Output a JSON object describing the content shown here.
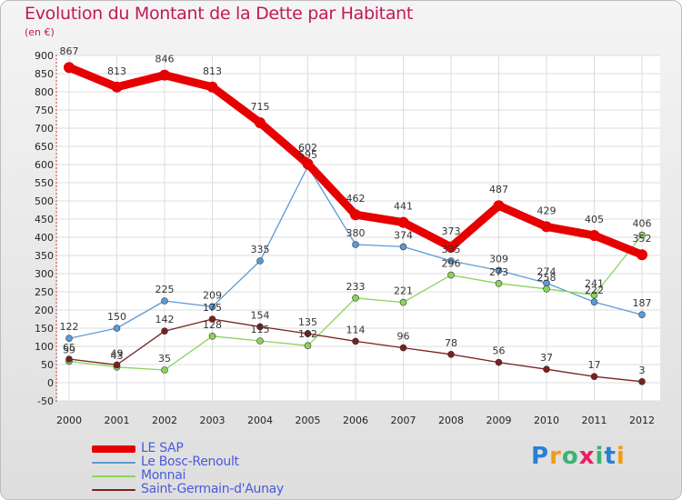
{
  "header": {
    "title": "Evolution du Montant de la Dette par Habitant",
    "unit": "(en €)"
  },
  "chart_data": {
    "type": "line",
    "title": "Evolution du Montant de la Dette par Habitant",
    "ylabel": "(en €)",
    "xlabel": "",
    "categories": [
      "2000",
      "2001",
      "2002",
      "2003",
      "2004",
      "2005",
      "2006",
      "2007",
      "2008",
      "2009",
      "2010",
      "2011",
      "2012"
    ],
    "ylim": [
      -50,
      900
    ],
    "yticks": [
      -50,
      0,
      50,
      100,
      150,
      200,
      250,
      300,
      350,
      400,
      450,
      500,
      550,
      600,
      650,
      700,
      750,
      800,
      850,
      900
    ],
    "grid": true,
    "legend_position": "bottom-left",
    "series": [
      {
        "name": "LE SAP",
        "color": "#e60000",
        "values": [
          867,
          813,
          846,
          813,
          715,
          602,
          462,
          441,
          373,
          487,
          429,
          405,
          352
        ]
      },
      {
        "name": "Le Bosc-Renoult",
        "color": "#5b9bd5",
        "values": [
          122,
          150,
          225,
          209,
          335,
          595,
          380,
          374,
          335,
          309,
          274,
          222,
          187
        ]
      },
      {
        "name": "Monnai",
        "color": "#8bd45c",
        "values": [
          59,
          43,
          35,
          128,
          115,
          102,
          233,
          221,
          296,
          273,
          258,
          241,
          406
        ]
      },
      {
        "name": "Saint-Germain-d'Aunay",
        "color": "#7b1f1f",
        "values": [
          65,
          49,
          142,
          175,
          154,
          135,
          114,
          96,
          78,
          56,
          37,
          17,
          3
        ]
      }
    ]
  },
  "logo": {
    "letters": [
      "P",
      "r",
      "o",
      "x",
      "i",
      "t",
      "i"
    ],
    "colors": [
      "#2a7fd4",
      "#f39c12",
      "#3cb371",
      "#e91e63",
      "#3cb371",
      "#2a7fd4",
      "#f39c12"
    ]
  }
}
